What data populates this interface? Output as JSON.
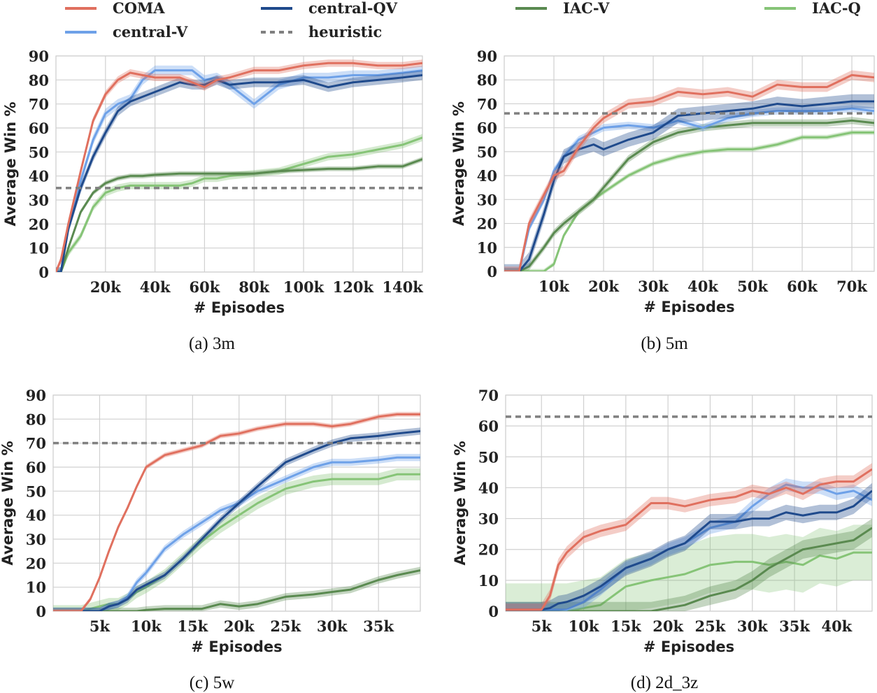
{
  "legend": {
    "entries": [
      {
        "name": "COMA",
        "color": "#e0705f",
        "style": "solid"
      },
      {
        "name": "central-V",
        "color": "#6ea1e8",
        "style": "solid"
      },
      {
        "name": "central-QV",
        "color": "#1f4a8c",
        "style": "solid"
      },
      {
        "name": "heuristic",
        "color": "#808080",
        "style": "dashed"
      },
      {
        "name": "IAC-V",
        "color": "#5a8a50",
        "style": "solid"
      },
      {
        "name": "IAC-Q",
        "color": "#86c477",
        "style": "solid"
      }
    ]
  },
  "chart_data": [
    {
      "type": "line",
      "caption": "(a) 3m",
      "xlabel": "# Episodes",
      "ylabel": "Average Win %",
      "xlim": [
        0,
        148000
      ],
      "ylim": [
        0,
        90
      ],
      "grid": true,
      "xticks": [
        20000,
        40000,
        60000,
        80000,
        100000,
        120000,
        140000
      ],
      "xticklabels": [
        "20k",
        "40k",
        "60k",
        "80k",
        "100k",
        "120k",
        "140k"
      ],
      "yticks": [
        0,
        10,
        20,
        30,
        40,
        50,
        60,
        70,
        80,
        90
      ],
      "yticklabels": [
        "0",
        "10",
        "20",
        "30",
        "40",
        "50",
        "60",
        "70",
        "80",
        "90"
      ],
      "heuristic": 35,
      "x": [
        0,
        2000,
        5000,
        10000,
        15000,
        20000,
        25000,
        30000,
        35000,
        40000,
        50000,
        55000,
        60000,
        65000,
        70000,
        80000,
        90000,
        100000,
        110000,
        120000,
        130000,
        140000,
        148000
      ],
      "series": [
        {
          "name": "COMA",
          "band": 1.5,
          "values": [
            0,
            5,
            20,
            42,
            63,
            74,
            80,
            83,
            82,
            81,
            81,
            79,
            77,
            80,
            81,
            84,
            84,
            86,
            87,
            87,
            86,
            86,
            87
          ]
        },
        {
          "name": "central-V",
          "band": 2,
          "values": [
            0,
            0,
            20,
            38,
            55,
            66,
            70,
            72,
            80,
            84,
            84,
            84,
            80,
            81,
            78,
            70,
            78,
            81,
            81,
            82,
            82,
            83,
            84
          ]
        },
        {
          "name": "central-QV",
          "band": 2,
          "values": [
            0,
            0,
            18,
            35,
            48,
            58,
            67,
            71,
            73,
            75,
            79,
            78,
            78,
            80,
            78,
            79,
            79,
            80,
            77,
            79,
            80,
            81,
            82
          ]
        },
        {
          "name": "IAC-V",
          "band": 1,
          "values": [
            0,
            0,
            10,
            25,
            33,
            37,
            39,
            40,
            40,
            40.5,
            41,
            41,
            41,
            41,
            41,
            41,
            42,
            42.5,
            43,
            43,
            44,
            44,
            47
          ]
        },
        {
          "name": "IAC-Q",
          "band": 1.5,
          "values": [
            0,
            0,
            8,
            15,
            27,
            33,
            35,
            36,
            36,
            36,
            36,
            37,
            39,
            39,
            40,
            41,
            42,
            45,
            48,
            49,
            51,
            53,
            56
          ]
        }
      ]
    },
    {
      "type": "line",
      "caption": "(b) 5m",
      "xlabel": "# Episodes",
      "ylabel": "Average Win %",
      "xlim": [
        0,
        74500
      ],
      "ylim": [
        0,
        90
      ],
      "grid": true,
      "xticks": [
        10000,
        20000,
        30000,
        40000,
        50000,
        60000,
        70000
      ],
      "xticklabels": [
        "10k",
        "20k",
        "30k",
        "40k",
        "50k",
        "60k",
        "70k"
      ],
      "yticks": [
        0,
        10,
        20,
        30,
        40,
        50,
        60,
        70,
        80,
        90
      ],
      "yticklabels": [
        "0",
        "10",
        "20",
        "30",
        "40",
        "50",
        "60",
        "70",
        "80",
        "90"
      ],
      "heuristic": 66,
      "x": [
        0,
        3000,
        5000,
        8000,
        10000,
        12000,
        15000,
        18000,
        20000,
        25000,
        30000,
        35000,
        40000,
        45000,
        50000,
        55000,
        60000,
        65000,
        70000,
        74500
      ],
      "series": [
        {
          "name": "COMA",
          "band": 2,
          "values": [
            0,
            0,
            20,
            32,
            40,
            42,
            52,
            60,
            64,
            70,
            71,
            75,
            74,
            75,
            73,
            78,
            77,
            77,
            82,
            81
          ]
        },
        {
          "name": "central-V",
          "band": 1.5,
          "values": [
            0,
            0,
            18,
            30,
            42,
            48,
            55,
            58,
            60,
            61,
            60,
            63,
            60,
            64,
            66,
            67,
            67,
            67,
            68,
            67
          ]
        },
        {
          "name": "central-QV",
          "band": 3,
          "values": [
            0,
            0,
            5,
            24,
            38,
            48,
            51,
            53,
            51,
            55,
            58,
            65,
            66,
            67,
            68,
            70,
            69,
            70,
            71,
            71
          ]
        },
        {
          "name": "IAC-V",
          "band": 1.5,
          "values": [
            0,
            0,
            2,
            10,
            16,
            20,
            25,
            30,
            35,
            47,
            54,
            58,
            60,
            61,
            62,
            62,
            62,
            62,
            63,
            62
          ]
        },
        {
          "name": "IAC-Q",
          "band": 1,
          "values": [
            0,
            0,
            0,
            0,
            3,
            15,
            25,
            30,
            33,
            40,
            45,
            48,
            50,
            51,
            51,
            53,
            56,
            56,
            58,
            58
          ]
        }
      ]
    },
    {
      "type": "line",
      "caption": "(c) 5w",
      "xlabel": "# Episodes",
      "ylabel": "Average Win %",
      "xlim": [
        0,
        39500
      ],
      "ylim": [
        0,
        90
      ],
      "grid": true,
      "xticks": [
        5000,
        10000,
        15000,
        20000,
        25000,
        30000,
        35000
      ],
      "xticklabels": [
        "5k",
        "10k",
        "15k",
        "20k",
        "25k",
        "30k",
        "35k"
      ],
      "yticks": [
        0,
        10,
        20,
        30,
        40,
        50,
        60,
        70,
        80,
        90
      ],
      "yticklabels": [
        "0",
        "10",
        "20",
        "30",
        "40",
        "50",
        "60",
        "70",
        "80",
        "90"
      ],
      "heuristic": 70,
      "x": [
        0,
        2000,
        3000,
        4000,
        5000,
        6000,
        7000,
        8000,
        9000,
        10000,
        12000,
        14000,
        16000,
        18000,
        20000,
        22000,
        25000,
        28000,
        30000,
        32000,
        35000,
        37000,
        39500
      ],
      "series": [
        {
          "name": "COMA",
          "band": 1,
          "values": [
            0,
            0,
            0,
            5,
            14,
            25,
            35,
            43,
            52,
            60,
            65,
            67,
            69,
            73,
            74,
            76,
            78,
            78,
            77,
            78,
            81,
            82,
            82
          ]
        },
        {
          "name": "central-V",
          "band": 1.5,
          "values": [
            0,
            0,
            0,
            0,
            0,
            2,
            3,
            6,
            12,
            16,
            26,
            32,
            37,
            42,
            45,
            50,
            55,
            60,
            62,
            62,
            63,
            64,
            64
          ]
        },
        {
          "name": "central-QV",
          "band": 1.5,
          "values": [
            0,
            0,
            0,
            0,
            0,
            2,
            3,
            5,
            9,
            11,
            15,
            22,
            30,
            38,
            45,
            52,
            62,
            67,
            70,
            72,
            73,
            74,
            75
          ]
        },
        {
          "name": "IAC-V",
          "band": 1.5,
          "values": [
            0,
            0,
            0,
            0,
            0,
            0,
            0,
            0,
            0,
            0.5,
            1,
            1,
            1,
            3,
            2,
            3,
            6,
            7,
            8,
            9,
            13,
            15,
            17
          ]
        },
        {
          "name": "IAC-Q",
          "band": 2.5,
          "values": [
            0,
            0,
            0,
            1,
            2,
            3,
            3,
            5,
            8,
            10,
            15,
            22,
            29,
            35,
            40,
            45,
            51,
            54,
            55,
            55,
            55,
            57,
            57
          ]
        }
      ]
    },
    {
      "type": "line",
      "caption": "(d) 2d_3z",
      "xlabel": "# Episodes",
      "ylabel": "Average Win %",
      "xlim": [
        750,
        44200
      ],
      "ylim": [
        0,
        70
      ],
      "grid": true,
      "xticks": [
        5000,
        10000,
        15000,
        20000,
        25000,
        30000,
        35000,
        40000
      ],
      "xticklabels": [
        "5k",
        "10k",
        "15k",
        "20k",
        "25k",
        "30k",
        "35k",
        "40k"
      ],
      "yticks": [
        0,
        10,
        20,
        30,
        40,
        50,
        60,
        70
      ],
      "yticklabels": [
        "0",
        "10",
        "20",
        "30",
        "40",
        "50",
        "60",
        "70"
      ],
      "heuristic": 63,
      "x": [
        750,
        3000,
        5000,
        6000,
        7000,
        8000,
        10000,
        12000,
        15000,
        18000,
        20000,
        22000,
        25000,
        28000,
        30000,
        32000,
        34000,
        36000,
        38000,
        40000,
        42000,
        44200
      ],
      "series": [
        {
          "name": "COMA",
          "band": 2,
          "values": [
            0.5,
            0.5,
            0.5,
            5,
            15,
            19,
            24,
            26,
            28,
            35,
            35,
            34,
            36,
            37,
            39,
            38,
            40,
            38,
            41,
            42,
            42,
            46
          ]
        },
        {
          "name": "central-V",
          "band": 2,
          "values": [
            0.5,
            0.5,
            0.5,
            0.5,
            0.5,
            0.5,
            3,
            7,
            14,
            17,
            20,
            22,
            27,
            29,
            34,
            38,
            41,
            40,
            40,
            38,
            39,
            36
          ]
        },
        {
          "name": "central-QV",
          "band": 2.5,
          "values": [
            0.5,
            0.5,
            0.5,
            1,
            2.5,
            3,
            5,
            8,
            14,
            17,
            20,
            22,
            29,
            29,
            30,
            30,
            32,
            31,
            32,
            32,
            34,
            39
          ]
        },
        {
          "name": "IAC-V",
          "band": 3,
          "values": [
            0,
            0,
            0,
            0,
            0,
            0,
            0,
            0,
            0,
            0,
            1,
            2,
            5,
            7,
            10,
            14,
            17,
            20,
            21,
            22,
            23,
            27
          ]
        },
        {
          "name": "IAC-Q",
          "band": 9,
          "values": [
            0,
            0,
            0,
            0,
            0,
            0,
            1,
            2,
            8,
            10,
            11,
            12,
            15,
            16,
            16,
            15,
            16,
            15,
            18,
            17,
            19,
            19
          ]
        }
      ]
    }
  ]
}
